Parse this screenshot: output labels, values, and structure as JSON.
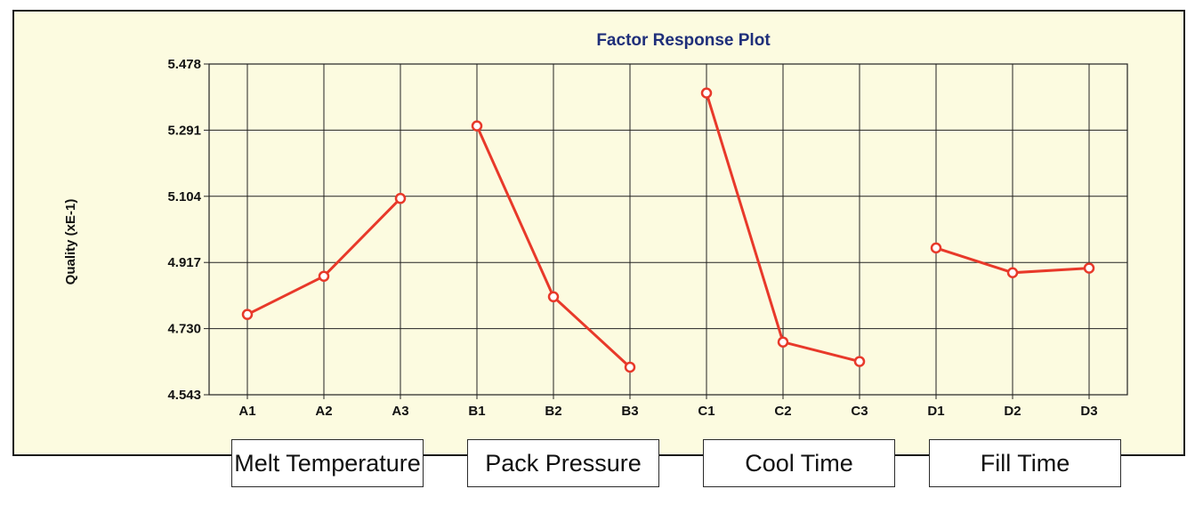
{
  "chart_data": {
    "type": "line",
    "title": "Factor Response Plot",
    "ylabel": "Quality (xE-1)",
    "xlabel": "",
    "ylim": [
      4.543,
      5.478
    ],
    "yticks": [
      "5.478",
      "5.291",
      "5.104",
      "4.917",
      "4.730",
      "4.543"
    ],
    "grid": true,
    "line_color": "#e8392a",
    "categories": [
      "A1",
      "A2",
      "A3",
      "B1",
      "B2",
      "B3",
      "C1",
      "C2",
      "C3",
      "D1",
      "D2",
      "D3"
    ],
    "factors": [
      {
        "label": "Melt Temperature",
        "levels": [
          "A1",
          "A2",
          "A3"
        ],
        "values": [
          4.77,
          4.878,
          5.098
        ]
      },
      {
        "label": "Pack Pressure",
        "levels": [
          "B1",
          "B2",
          "B3"
        ],
        "values": [
          5.303,
          4.82,
          4.621
        ]
      },
      {
        "label": "Cool Time",
        "levels": [
          "C1",
          "C2",
          "C3"
        ],
        "values": [
          5.396,
          4.692,
          4.637
        ]
      },
      {
        "label": "Fill Time",
        "levels": [
          "D1",
          "D2",
          "D3"
        ],
        "values": [
          4.958,
          4.888,
          4.901
        ]
      }
    ]
  }
}
